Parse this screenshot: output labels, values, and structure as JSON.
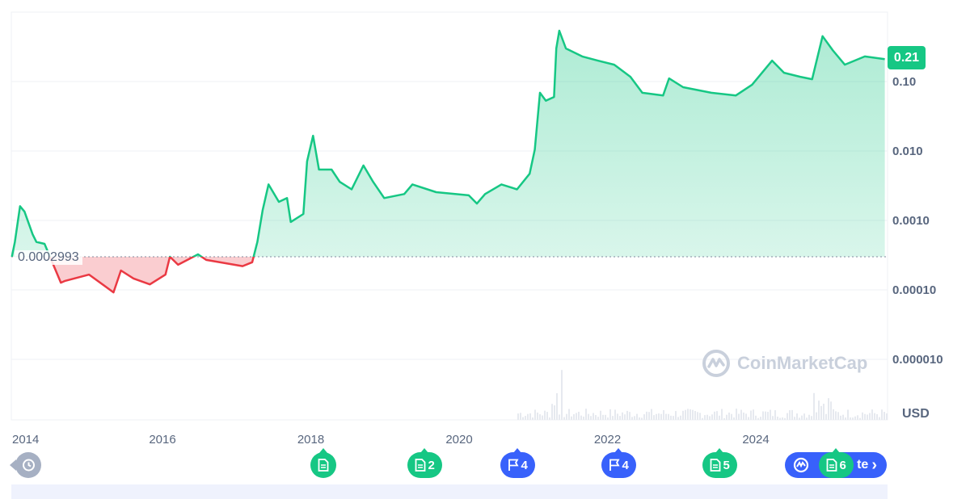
{
  "chart_data": {
    "type": "area",
    "title": "",
    "xlabel": "",
    "ylabel": "",
    "currency_label": "USD",
    "y_scale": "log",
    "ylim": [
      5e-06,
      0.7
    ],
    "xlim": [
      2013.97,
      2025.78
    ],
    "grid": true,
    "yticks": [
      {
        "value": 0.1,
        "label": "0.10"
      },
      {
        "value": 0.01,
        "label": "0.010"
      },
      {
        "value": 0.001,
        "label": "0.0010"
      },
      {
        "value": 0.0001,
        "label": "0.00010"
      },
      {
        "value": 1e-05,
        "label": "0.000010"
      }
    ],
    "xticks": [
      {
        "value": 2014,
        "label": "2014"
      },
      {
        "value": 2016,
        "label": "2016"
      },
      {
        "value": 2018,
        "label": "2018"
      },
      {
        "value": 2020,
        "label": "2020"
      },
      {
        "value": 2022,
        "label": "2022"
      },
      {
        "value": 2024,
        "label": "2024"
      }
    ],
    "baseline": {
      "value": 0.0002993,
      "label": "0.0002993"
    },
    "current_price": {
      "value": 0.21,
      "label": "0.21"
    },
    "colors": {
      "up": "#16c784",
      "down": "#ea3943",
      "volume": "#e6e9ef"
    },
    "series": [
      {
        "points": [
          [
            2013.97,
            0.0003
          ],
          [
            2014.01,
            0.00049
          ],
          [
            2014.08,
            0.0016
          ],
          [
            2014.14,
            0.00134
          ],
          [
            2014.25,
            0.00063
          ],
          [
            2014.3,
            0.00049
          ],
          [
            2014.41,
            0.00046
          ],
          [
            2014.63,
            0.000127
          ],
          [
            2014.68,
            0.000134
          ],
          [
            2015.01,
            0.000166
          ],
          [
            2015.34,
            9.2e-05
          ],
          [
            2015.44,
            0.00019
          ],
          [
            2015.61,
            0.000146
          ],
          [
            2015.83,
            0.00012
          ],
          [
            2016.04,
            0.000166
          ],
          [
            2016.1,
            0.0003
          ],
          [
            2016.21,
            0.00023
          ],
          [
            2016.48,
            0.000325
          ],
          [
            2016.59,
            0.00027
          ],
          [
            2017.08,
            0.00022
          ],
          [
            2017.21,
            0.00025
          ],
          [
            2017.28,
            0.00049
          ],
          [
            2017.35,
            0.0014
          ],
          [
            2017.43,
            0.0033
          ],
          [
            2017.57,
            0.00185
          ],
          [
            2017.68,
            0.0021
          ],
          [
            2017.73,
            0.00095
          ],
          [
            2017.9,
            0.00124
          ],
          [
            2017.95,
            0.0071
          ],
          [
            2018.03,
            0.0166
          ],
          [
            2018.11,
            0.0054
          ],
          [
            2018.28,
            0.0054
          ],
          [
            2018.39,
            0.0036
          ],
          [
            2018.55,
            0.0028
          ],
          [
            2018.71,
            0.0062
          ],
          [
            2018.84,
            0.0036
          ],
          [
            2018.99,
            0.0021
          ],
          [
            2019.26,
            0.0024
          ],
          [
            2019.37,
            0.0033
          ],
          [
            2019.69,
            0.00255
          ],
          [
            2020.13,
            0.0023
          ],
          [
            2020.24,
            0.00175
          ],
          [
            2020.35,
            0.0024
          ],
          [
            2020.57,
            0.0033
          ],
          [
            2020.78,
            0.0028
          ],
          [
            2020.95,
            0.0047
          ],
          [
            2021.02,
            0.0105
          ],
          [
            2021.09,
            0.069
          ],
          [
            2021.17,
            0.053
          ],
          [
            2021.28,
            0.06
          ],
          [
            2021.31,
            0.3
          ],
          [
            2021.35,
            0.54
          ],
          [
            2021.44,
            0.3
          ],
          [
            2021.66,
            0.23
          ],
          [
            2021.87,
            0.2
          ],
          [
            2022.09,
            0.175
          ],
          [
            2022.31,
            0.117
          ],
          [
            2022.47,
            0.069
          ],
          [
            2022.75,
            0.063
          ],
          [
            2022.83,
            0.111
          ],
          [
            2023.02,
            0.083
          ],
          [
            2023.4,
            0.069
          ],
          [
            2023.73,
            0.063
          ],
          [
            2023.95,
            0.09
          ],
          [
            2024.22,
            0.2
          ],
          [
            2024.38,
            0.134
          ],
          [
            2024.6,
            0.117
          ],
          [
            2024.76,
            0.108
          ],
          [
            2024.9,
            0.45
          ],
          [
            2025.04,
            0.28
          ],
          [
            2025.2,
            0.175
          ],
          [
            2025.47,
            0.23
          ],
          [
            2025.74,
            0.21
          ]
        ]
      }
    ]
  },
  "watermark": "CoinMarketCap",
  "events": [
    {
      "type": "history",
      "icon": "history-icon",
      "count": ""
    },
    {
      "type": "news",
      "icon": "document-icon",
      "count": ""
    },
    {
      "type": "news",
      "icon": "document-icon",
      "count": "2"
    },
    {
      "type": "milestone",
      "icon": "flag-icon",
      "count": "4"
    },
    {
      "type": "milestone",
      "icon": "flag-icon",
      "count": "4"
    },
    {
      "type": "news",
      "icon": "document-icon",
      "count": "5"
    },
    {
      "type": "news",
      "icon": "document-icon",
      "count": "6"
    }
  ],
  "compare_button": {
    "label_visible": "te",
    "chevron": "›",
    "icon": "cmc-logo-icon"
  }
}
